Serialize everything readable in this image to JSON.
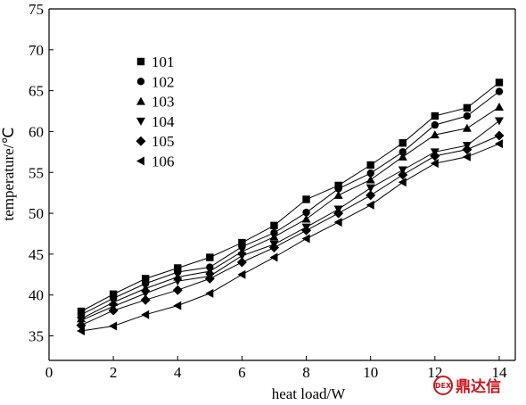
{
  "chart_data": {
    "type": "line",
    "xlabel": "heat load/W",
    "ylabel": "temperature/℃",
    "xlim": [
      0,
      14.5
    ],
    "ylim": [
      32,
      75
    ],
    "xticks": [
      0,
      2,
      4,
      6,
      8,
      10,
      12,
      14
    ],
    "yticks": [
      35,
      40,
      45,
      50,
      55,
      60,
      65,
      70,
      75
    ],
    "grid": false,
    "legend_position": "top-left",
    "x": [
      1,
      2,
      3,
      4,
      5,
      6,
      7,
      8,
      9,
      10,
      11,
      12,
      13,
      14
    ],
    "series": [
      {
        "name": "101",
        "marker": "square",
        "values": [
          38.0,
          40.1,
          42.0,
          43.3,
          44.6,
          46.4,
          48.5,
          51.7,
          53.4,
          55.9,
          58.6,
          61.9,
          62.9,
          66.0
        ]
      },
      {
        "name": "102",
        "marker": "circle",
        "values": [
          37.6,
          39.6,
          41.4,
          42.8,
          43.4,
          45.9,
          47.6,
          50.1,
          53.0,
          54.9,
          57.5,
          60.8,
          61.9,
          64.9
        ]
      },
      {
        "name": "103",
        "marker": "triangle-up",
        "values": [
          37.1,
          39.1,
          40.8,
          42.2,
          42.9,
          45.3,
          47.1,
          49.3,
          52.2,
          54.1,
          56.9,
          59.6,
          60.4,
          63.0
        ]
      },
      {
        "name": "104",
        "marker": "triangle-down",
        "values": [
          36.9,
          38.6,
          40.2,
          41.7,
          42.3,
          44.8,
          46.2,
          48.3,
          50.5,
          53.1,
          55.3,
          57.5,
          58.3,
          61.3
        ]
      },
      {
        "name": "105",
        "marker": "diamond",
        "values": [
          36.3,
          38.1,
          39.4,
          40.6,
          42.0,
          44.0,
          45.8,
          47.9,
          50.0,
          52.2,
          54.7,
          57.0,
          57.8,
          59.5
        ]
      },
      {
        "name": "106",
        "marker": "triangle-left",
        "values": [
          35.6,
          36.2,
          37.6,
          38.7,
          40.2,
          42.5,
          44.6,
          46.9,
          48.9,
          51.0,
          53.8,
          56.1,
          56.9,
          58.5
        ]
      }
    ]
  },
  "watermark": {
    "text": "鼎达信",
    "logo_text": "DEX",
    "color": "#c8161d"
  }
}
